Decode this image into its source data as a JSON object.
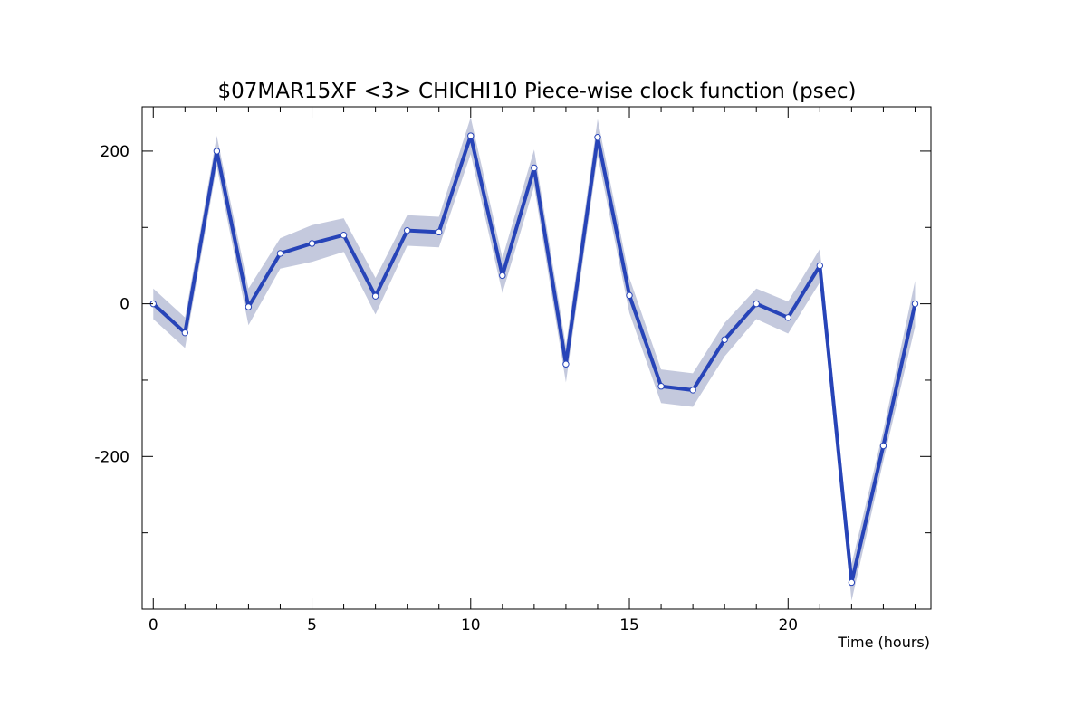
{
  "chart_data": {
    "type": "line",
    "title": "$07MAR15XF <3>  CHICHI10  Piece-wise clock function (psec)",
    "xlabel": "Time (hours)",
    "ylabel": "",
    "xlim": [
      -0.35,
      24.5
    ],
    "ylim": [
      -400,
      258
    ],
    "x_ticks": [
      0,
      5,
      10,
      15,
      20
    ],
    "y_ticks": [
      -200,
      0,
      200
    ],
    "x_tick_labels": [
      "0",
      "5",
      "10",
      "15",
      "20"
    ],
    "y_tick_labels": [
      "-200",
      "0",
      "200"
    ],
    "grid": false,
    "legend": "none",
    "series": [
      {
        "x": [
          0,
          1,
          2,
          3,
          4,
          5,
          6,
          7,
          8,
          9,
          10,
          11,
          12,
          13,
          14,
          15,
          16,
          17,
          18,
          19,
          20,
          21,
          22,
          23,
          24
        ],
        "values": [
          0,
          -38,
          200,
          -4,
          66,
          79,
          90,
          10,
          96,
          94,
          220,
          37,
          178,
          -79,
          218,
          11,
          -108,
          -113,
          -47,
          0,
          -18,
          50,
          -365,
          -186,
          0
        ],
        "band_upper": [
          20,
          -18,
          220,
          20,
          86,
          103,
          112,
          34,
          116,
          114,
          244,
          60,
          202,
          -55,
          242,
          34,
          -86,
          -91,
          -25,
          20,
          3,
          72,
          -341,
          -166,
          30
        ],
        "band_lower": [
          -20,
          -58,
          180,
          -28,
          46,
          55,
          68,
          -14,
          76,
          74,
          196,
          14,
          154,
          -103,
          194,
          -12,
          -130,
          -135,
          -69,
          -20,
          -39,
          28,
          -389,
          -206,
          -30
        ]
      }
    ]
  },
  "colors": {
    "line": "#2744b8",
    "band": "#c4c9dd",
    "marker_fill": "#ffffff",
    "axis": "#000000"
  }
}
